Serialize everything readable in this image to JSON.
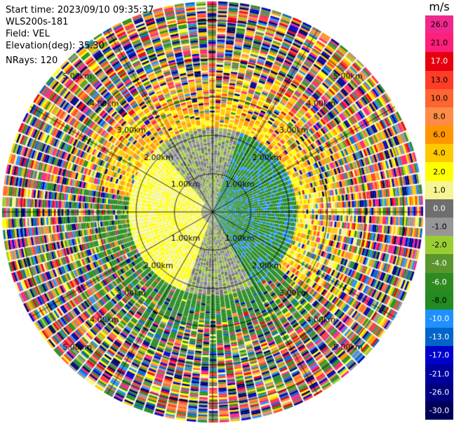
{
  "header": {
    "start_time": "Start time: 2023/09/10 09:35:37",
    "instrument": "WLS200s-181",
    "field": "Field: VEL",
    "elevation": "Elevation(deg): 35.30",
    "nrays": "NRays: 120"
  },
  "colorbar": {
    "unit": "m/s",
    "ticks": [
      "26.0",
      "21.0",
      "17.0",
      "13.0",
      "10.0",
      "8.0",
      "6.0",
      "4.0",
      "2.0",
      "1.0",
      "0.0",
      "-1.0",
      "-2.0",
      "-4.0",
      "-6.0",
      "-8.0",
      "-10.0",
      "-13.0",
      "-17.0",
      "-21.0",
      "-26.0",
      "-30.0"
    ],
    "colors": [
      "#f0288c",
      "#ff1e78",
      "#e6000f",
      "#ff3c28",
      "#ff6432",
      "#ff8c46",
      "#ff9600",
      "#ffc800",
      "#ffff00",
      "#f5f591",
      "#6e6e6e",
      "#969696",
      "#9acd32",
      "#5a962d",
      "#2e8b22",
      "#228b22",
      "#1e90ff",
      "#0064c8",
      "#0000cd",
      "#0000a0",
      "#000080",
      "#00005a"
    ]
  },
  "chart_data": {
    "type": "heatmap",
    "projection": "polar PPI",
    "field": "VEL",
    "units": "m/s",
    "nrays": 120,
    "range_rings_km": [
      "1.00km",
      "2.00km",
      "3.00km",
      "4.00km",
      "5.00km"
    ],
    "max_range_km": 5.5,
    "color_scale": [
      -30.0,
      -26.0,
      -21.0,
      -17.0,
      -13.0,
      -10.0,
      -8.0,
      -6.0,
      -4.0,
      -2.0,
      -1.0,
      0.0,
      1.0,
      2.0,
      4.0,
      6.0,
      8.0,
      10.0,
      13.0,
      17.0,
      21.0,
      26.0
    ],
    "pattern": {
      "near_field_km": 2.2,
      "west_sector_deg": [
        200,
        320
      ],
      "west_sector_value": 2.0,
      "east_sector_deg": [
        20,
        150
      ],
      "east_sector_value": -7.0,
      "north_outer_value": 5.0,
      "south_outer_value": -6.0,
      "far_range_noise": true
    }
  }
}
